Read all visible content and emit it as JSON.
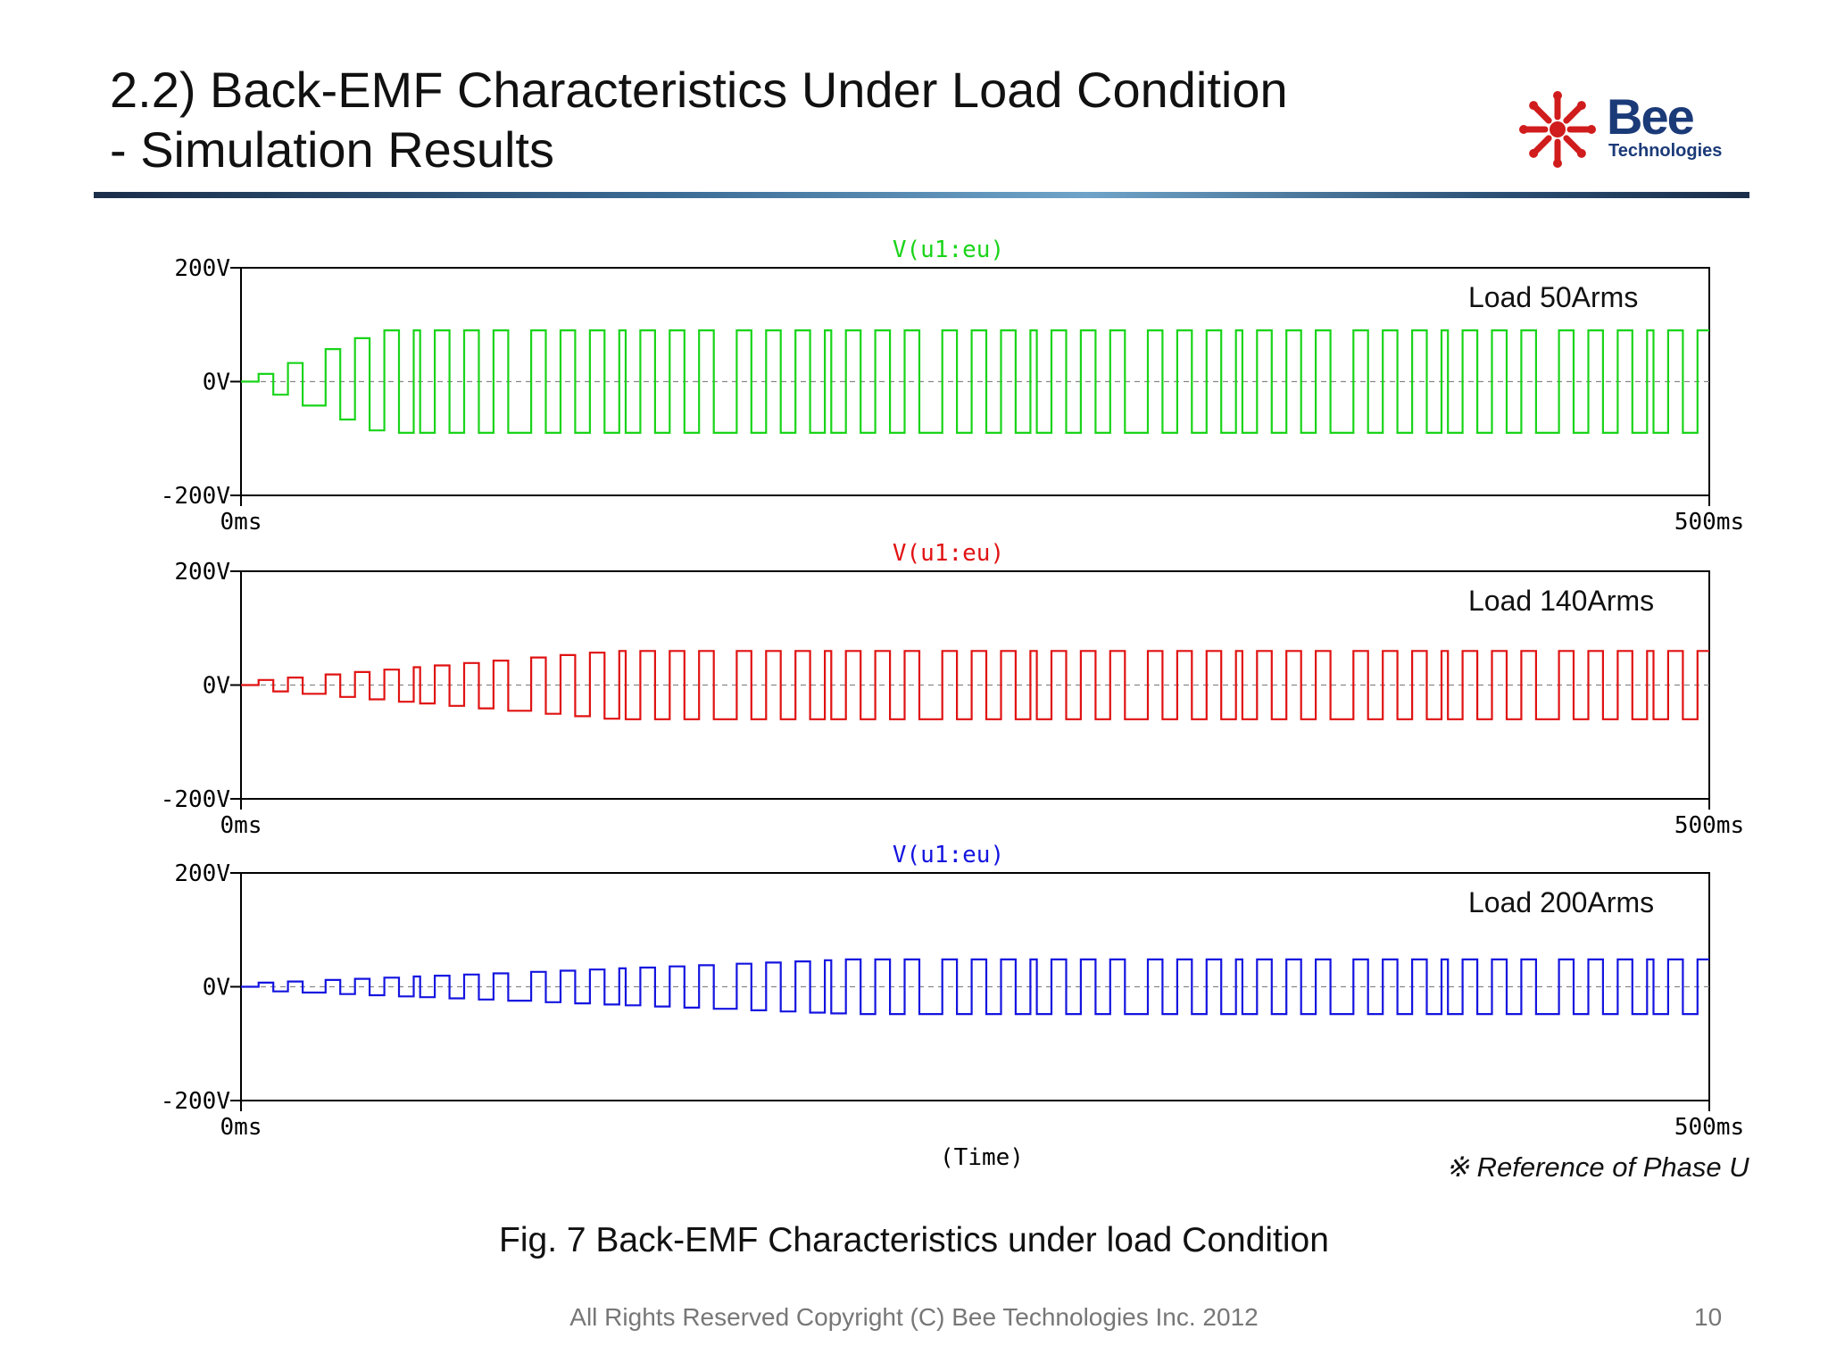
{
  "header": {
    "title_line1": "2.2) Back-EMF Characteristics Under Load Condition",
    "title_line2": "- Simulation Results"
  },
  "logo": {
    "brand": "Bee",
    "sub": "Technologies",
    "icon": "sunburst-icon",
    "color": "#d01c1c",
    "text_color": "#1b3a78"
  },
  "chart_data": [
    {
      "type": "line",
      "trace_label": "V(u1:eu)",
      "annotation": "Load 50Arms",
      "color": "#19d419",
      "x_ticks": [
        "0ms",
        "500ms"
      ],
      "y_ticks": [
        "200V",
        "0V",
        "-200V"
      ],
      "xlim": [
        0,
        500
      ],
      "ylim": [
        -200,
        200
      ],
      "series": [
        {
          "amplitude": 90,
          "start_ms": 6,
          "period_ms": 10,
          "settle_ms": 40
        }
      ]
    },
    {
      "type": "line",
      "trace_label": "V(u1:eu)",
      "annotation": "Load 140Arms",
      "color": "#e01212",
      "x_ticks": [
        "0ms",
        "500ms"
      ],
      "y_ticks": [
        "200V",
        "0V",
        "-200V"
      ],
      "xlim": [
        0,
        500
      ],
      "ylim": [
        -200,
        200
      ],
      "series": [
        {
          "amplitude": 60,
          "start_ms": 6,
          "period_ms": 10,
          "settle_ms": 120
        }
      ]
    },
    {
      "type": "line",
      "trace_label": "V(u1:eu)",
      "annotation": "Load 200Arms",
      "color": "#1414e0",
      "x_ticks": [
        "0ms",
        "500ms"
      ],
      "y_ticks": [
        "200V",
        "0V",
        "-200V"
      ],
      "xlim": [
        0,
        500
      ],
      "ylim": [
        -200,
        200
      ],
      "series": [
        {
          "amplitude": 48,
          "start_ms": 6,
          "period_ms": 10,
          "settle_ms": 200
        }
      ]
    }
  ],
  "x_axis_title": "(Time)",
  "note": "※ Reference of Phase U",
  "caption": "Fig. 7 Back-EMF Characteristics under load Condition",
  "footer": "All Rights Reserved Copyright (C) Bee Technologies Inc. 2012",
  "page_number": "10"
}
